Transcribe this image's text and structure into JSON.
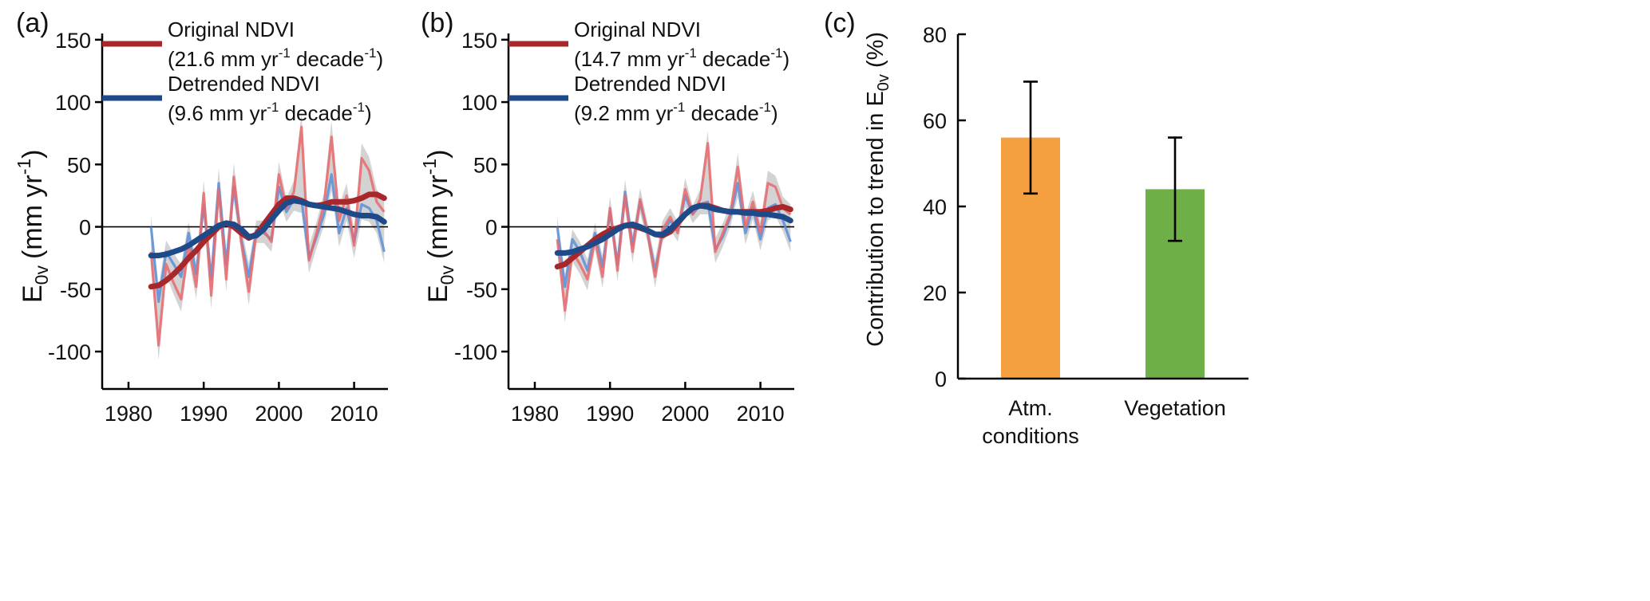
{
  "colors": {
    "original_thin": "#e8686c",
    "original_thick": "#a7272b",
    "detrended_thin": "#5a8ed8",
    "detrended_thick": "#1f4a8a",
    "band": "#c4c4c4",
    "atm_bar": "#f5a040",
    "veg_bar": "#6faf47"
  },
  "chart_data": [
    {
      "panel_label": "(a)",
      "type": "line",
      "ylabel_main": "E",
      "ylabel_sub": "0v",
      "ylabel_unit_open": "(mm yr",
      "ylabel_unit_sup": "-1",
      "ylabel_unit_close": ")",
      "ylim": [
        -130,
        155
      ],
      "xlim": [
        1976.5,
        2014.5
      ],
      "yticks": [
        -100,
        -50,
        0,
        50,
        100,
        150
      ],
      "ytick_labels": [
        "-100",
        "-50",
        "0",
        "50",
        "100",
        "150"
      ],
      "xticks": [
        1980,
        1990,
        2000,
        2010
      ],
      "xtick_labels": [
        "1980",
        "1990",
        "2000",
        "2010"
      ],
      "legend": [
        {
          "name": "Original NDVI",
          "rate": "(21.6 mm yr",
          "sup1": "-1",
          "mid": " decade",
          "sup2": "-1",
          "end": ")"
        },
        {
          "name": "Detrended NDVI",
          "rate": "(9.6 mm yr",
          "sup1": "-1",
          "mid": " decade",
          "sup2": "-1",
          "end": ")"
        }
      ],
      "x": [
        1983,
        1984,
        1985,
        1986,
        1987,
        1988,
        1989,
        1990,
        1991,
        1992,
        1993,
        1994,
        1995,
        1996,
        1997,
        1998,
        1999,
        2000,
        2001,
        2002,
        2003,
        2004,
        2005,
        2006,
        2007,
        2008,
        2009,
        2010,
        2011,
        2012,
        2013,
        2014
      ],
      "original": [
        -20,
        -95,
        -30,
        -45,
        -58,
        -15,
        -48,
        27,
        -55,
        30,
        -42,
        40,
        -12,
        -52,
        -5,
        -3,
        -12,
        42,
        15,
        28,
        80,
        -27,
        -5,
        18,
        72,
        5,
        25,
        -15,
        55,
        45,
        20,
        12
      ],
      "detrended": [
        0,
        -60,
        -20,
        -30,
        -40,
        -5,
        -38,
        18,
        -42,
        35,
        -30,
        32,
        -10,
        -40,
        -3,
        -5,
        -10,
        32,
        12,
        22,
        22,
        -25,
        -8,
        10,
        42,
        -5,
        15,
        -12,
        18,
        15,
        5,
        -20
      ],
      "band_half": [
        9,
        12,
        9,
        9,
        10,
        9,
        10,
        10,
        11,
        12,
        10,
        11,
        9,
        11,
        8,
        8,
        8,
        10,
        8,
        9,
        11,
        10,
        9,
        9,
        13,
        11,
        10,
        10,
        12,
        11,
        10,
        9
      ],
      "original_smooth": [
        -48,
        -47,
        -43,
        -38,
        -32,
        -25,
        -19,
        -12,
        -6,
        0,
        3,
        0,
        -5,
        -9,
        -6,
        2,
        10,
        18,
        23,
        23,
        21,
        18,
        17,
        18,
        20,
        20,
        20,
        21,
        23,
        26,
        26,
        23
      ],
      "detrended_smooth": [
        -23,
        -23,
        -22,
        -20,
        -18,
        -15,
        -11,
        -7,
        -3,
        1,
        3,
        2,
        -2,
        -8,
        -7,
        -2,
        6,
        13,
        19,
        21,
        20,
        18,
        17,
        16,
        15,
        14,
        12,
        10,
        9,
        9,
        8,
        4
      ]
    },
    {
      "panel_label": "(b)",
      "type": "line",
      "ylabel_main": "E",
      "ylabel_sub": "0v",
      "ylabel_unit_open": "(mm yr",
      "ylabel_unit_sup": "-1",
      "ylabel_unit_close": ")",
      "ylim": [
        -130,
        155
      ],
      "xlim": [
        1976.5,
        2014.5
      ],
      "yticks": [
        -100,
        -50,
        0,
        50,
        100,
        150
      ],
      "ytick_labels": [
        "-100",
        "-50",
        "0",
        "50",
        "100",
        "150"
      ],
      "xticks": [
        1980,
        1990,
        2000,
        2010
      ],
      "xtick_labels": [
        "1980",
        "1990",
        "2000",
        "2010"
      ],
      "legend": [
        {
          "name": "Original NDVI",
          "rate": "(14.7 mm yr",
          "sup1": "-1",
          "mid": " decade",
          "sup2": "-1",
          "end": ")"
        },
        {
          "name": "Detrended NDVI",
          "rate": "(9.2 mm yr",
          "sup1": "-1",
          "mid": " decade",
          "sup2": "-1",
          "end": ")"
        }
      ],
      "x": [
        1983,
        1984,
        1985,
        1986,
        1987,
        1988,
        1989,
        1990,
        1991,
        1992,
        1993,
        1994,
        1995,
        1996,
        1997,
        1998,
        1999,
        2000,
        2001,
        2002,
        2003,
        2004,
        2005,
        2006,
        2007,
        2008,
        2009,
        2010,
        2011,
        2012,
        2013,
        2014
      ],
      "original": [
        -10,
        -67,
        -20,
        -30,
        -42,
        -10,
        -40,
        15,
        -35,
        25,
        -20,
        22,
        -5,
        -40,
        -2,
        8,
        -5,
        30,
        10,
        22,
        67,
        -20,
        -5,
        10,
        48,
        0,
        20,
        -5,
        35,
        32,
        15,
        10
      ],
      "detrended": [
        0,
        -48,
        -10,
        -20,
        -35,
        -5,
        -32,
        12,
        -30,
        28,
        -15,
        20,
        -5,
        -35,
        -5,
        5,
        -3,
        25,
        10,
        18,
        20,
        -18,
        -8,
        8,
        35,
        -5,
        15,
        -10,
        15,
        18,
        5,
        -12
      ],
      "band_half": [
        8,
        10,
        8,
        8,
        9,
        8,
        9,
        9,
        9,
        10,
        9,
        9,
        8,
        9,
        7,
        7,
        7,
        9,
        7,
        8,
        10,
        9,
        8,
        8,
        11,
        9,
        9,
        9,
        10,
        9,
        9,
        8
      ],
      "original_smooth": [
        -32,
        -30,
        -25,
        -20,
        -15,
        -10,
        -6,
        -3,
        -1,
        1,
        1,
        -1,
        -3,
        -6,
        -7,
        -4,
        3,
        10,
        15,
        17,
        17,
        15,
        13,
        12,
        12,
        12,
        12,
        12,
        13,
        15,
        16,
        14
      ],
      "detrended_smooth": [
        -21,
        -21,
        -20,
        -18,
        -16,
        -13,
        -10,
        -6,
        -2,
        1,
        2,
        0,
        -3,
        -6,
        -6,
        -2,
        4,
        10,
        15,
        17,
        16,
        14,
        13,
        12,
        12,
        11,
        11,
        10,
        10,
        9,
        8,
        5
      ]
    },
    {
      "panel_label": "(c)",
      "type": "bar",
      "ylabel_prefix": "Contribution to trend in E",
      "ylabel_sub": "0v",
      "ylabel_suffix": " (%)",
      "ylim": [
        0,
        80
      ],
      "yticks": [
        0,
        20,
        40,
        60,
        80
      ],
      "ytick_labels": [
        "0",
        "20",
        "40",
        "60",
        "80"
      ],
      "categories": [
        [
          "Atm.",
          "conditions"
        ],
        [
          "Vegetation"
        ]
      ],
      "values": [
        56,
        44
      ],
      "err_low": [
        43,
        32
      ],
      "err_high": [
        69,
        56
      ]
    }
  ]
}
